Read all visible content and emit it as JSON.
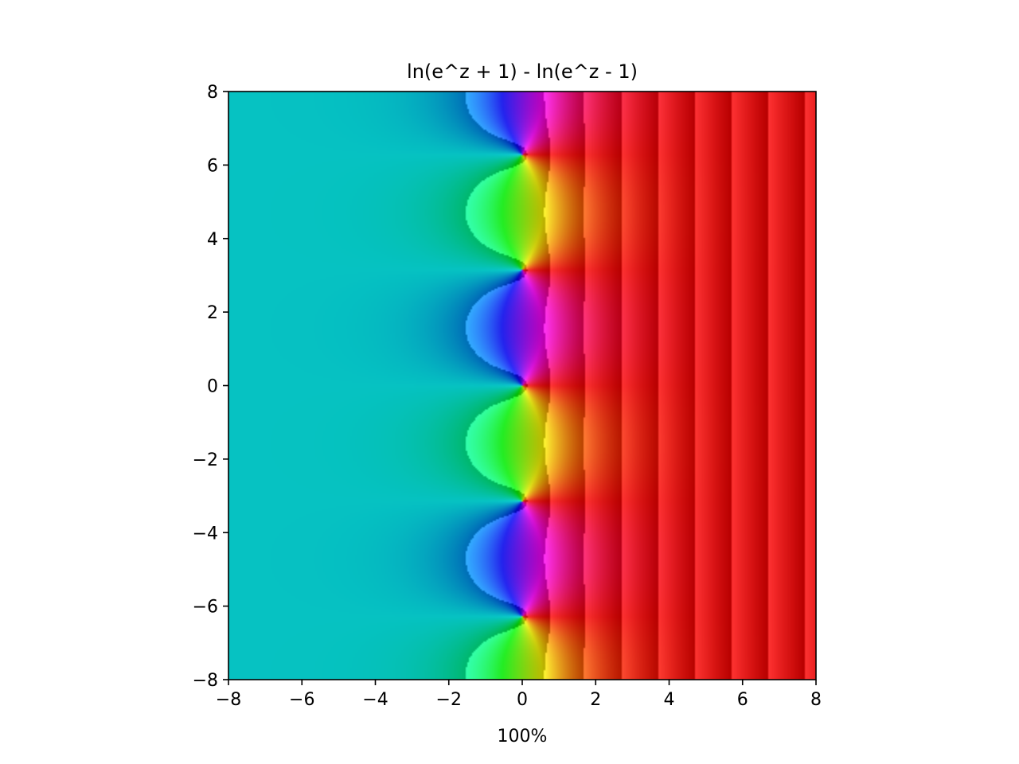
{
  "chart_data": {
    "type": "heatmap",
    "subtype": "domain-coloring",
    "title": "ln(e^z + 1) - ln(e^z - 1)",
    "xlabel": "100%",
    "ylabel": "",
    "xlim": [
      -8,
      8
    ],
    "ylim": [
      -8,
      8
    ],
    "xticks": [
      -8,
      -6,
      -4,
      -2,
      0,
      2,
      4,
      6,
      8
    ],
    "yticks": [
      -8,
      -6,
      -4,
      -2,
      0,
      2,
      4,
      6,
      8
    ],
    "xtick_labels": [
      "−8",
      "−6",
      "−4",
      "−2",
      "0",
      "2",
      "4",
      "6",
      "8"
    ],
    "ytick_labels": [
      "−8",
      "−6",
      "−4",
      "−2",
      "0",
      "2",
      "4",
      "6",
      "8"
    ],
    "function": "ln(exp(z) + 1) - ln(exp(z) - 1)",
    "coloring": "hue = arg(f(z)), brightness shading by log modulus",
    "grid": false
  }
}
